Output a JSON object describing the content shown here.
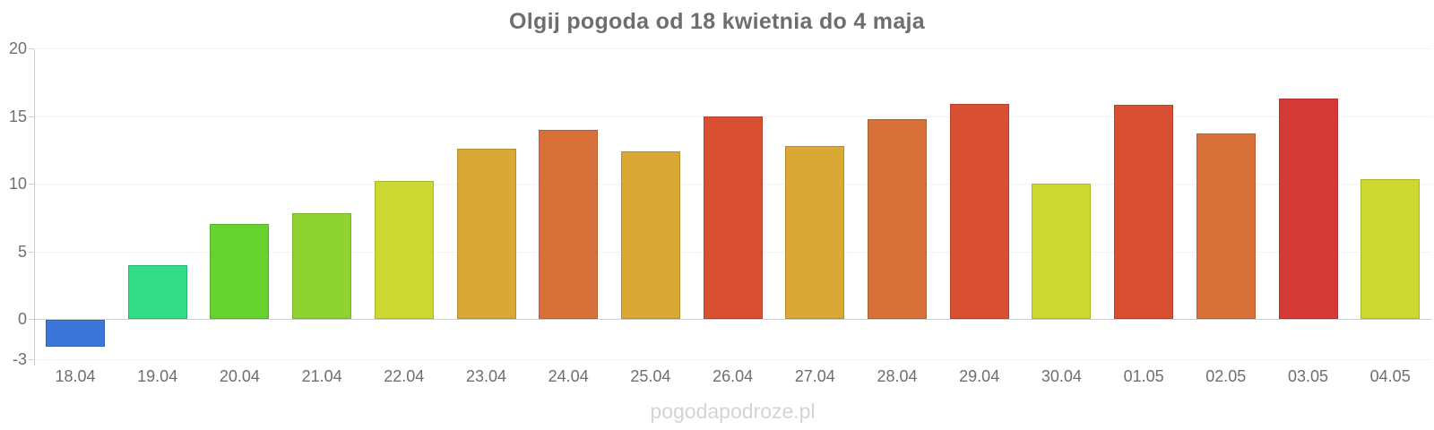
{
  "title": "Olgij pogoda od 18 kwietnia do 4 maja",
  "watermark": "pogodapodroze.pl",
  "chart_data": {
    "type": "bar",
    "title": "Olgij pogoda od 18 kwietnia do 4 maja",
    "categories": [
      "18.04",
      "19.04",
      "20.04",
      "21.04",
      "22.04",
      "23.04",
      "24.04",
      "25.04",
      "26.04",
      "27.04",
      "28.04",
      "29.04",
      "30.04",
      "01.05",
      "02.05",
      "03.05",
      "04.05"
    ],
    "values": [
      -2,
      4,
      7,
      7.8,
      10.2,
      12.6,
      14,
      12.4,
      15,
      12.8,
      14.8,
      15.9,
      10,
      15.8,
      13.7,
      16.3,
      10.3
    ],
    "bar_colors": [
      "#3b76d8",
      "#33da88",
      "#65d22f",
      "#8ed331",
      "#cdd932",
      "#d9a835",
      "#d8703a",
      "#d9a835",
      "#d85031",
      "#d9a835",
      "#d8703a",
      "#d85031",
      "#cdd932",
      "#d85031",
      "#d8703a",
      "#d53a37",
      "#cdd932"
    ],
    "xlabel": "",
    "ylabel": "",
    "ylim": [
      -3,
      20
    ],
    "yticks": [
      -3,
      0,
      5,
      10,
      15,
      20
    ],
    "grid": "horizontal-dotted",
    "legend": "none"
  },
  "colors": {
    "background": "#ffffff",
    "title_text": "#6e6e6e",
    "tick_text": "#6f6f6f",
    "axis_line": "#cccccc",
    "gridline": "#e9e9e9",
    "zero_line": "#cfcfcf",
    "watermark_text": "#d4d4d4"
  }
}
